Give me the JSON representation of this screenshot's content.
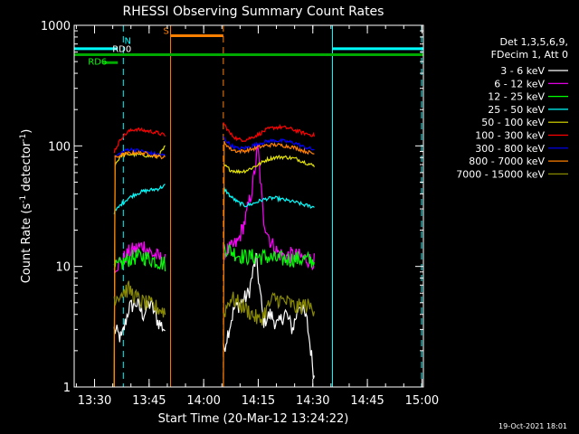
{
  "chart_data": {
    "type": "line",
    "title": "RHESSI Observing Summary Count Rates",
    "xlabel": "Start Time (20-Mar-12 13:24:22)",
    "ylabel": "Count Rate (s⁻¹ detector⁻¹)",
    "ylabel_parts": [
      "Count Rate (s",
      "-1",
      " detector",
      "-1",
      ")"
    ],
    "yscale": "log",
    "ylim": [
      1,
      1000
    ],
    "xlim_minutes": [
      0,
      96
    ],
    "x_ticks": [
      {
        "label": "13:30",
        "t": 5.6
      },
      {
        "label": "13:45",
        "t": 20.6
      },
      {
        "label": "14:00",
        "t": 35.6
      },
      {
        "label": "14:15",
        "t": 50.6
      },
      {
        "label": "14:30",
        "t": 65.6
      },
      {
        "label": "14:45",
        "t": 80.6
      },
      {
        "label": "15:00",
        "t": 95.6
      }
    ],
    "y_ticks": [
      {
        "label": "1",
        "v": 1
      },
      {
        "label": "10",
        "v": 10
      },
      {
        "label": "100",
        "v": 100
      },
      {
        "label": "1000",
        "v": 1000
      }
    ],
    "legend": {
      "placement": "right",
      "header": [
        "Det 1,3,5,6,9,",
        "FDecim 1, Att 0"
      ]
    },
    "segments": [
      [
        11,
        25
      ],
      [
        41,
        66
      ]
    ],
    "series": [
      {
        "name": "3 - 6 keV",
        "color": "#ffffff",
        "seg1": [
          [
            11,
            3
          ],
          [
            13,
            2.5
          ],
          [
            15,
            4.5
          ],
          [
            17,
            5
          ],
          [
            19,
            4
          ],
          [
            21,
            5
          ],
          [
            23,
            3.5
          ],
          [
            25,
            3
          ]
        ],
        "seg2": [
          [
            41,
            2
          ],
          [
            42.5,
            3
          ],
          [
            44,
            4.5
          ],
          [
            46,
            5
          ],
          [
            48,
            6
          ],
          [
            50,
            12
          ],
          [
            52,
            3.5
          ],
          [
            54,
            4
          ],
          [
            56,
            3.2
          ],
          [
            58,
            4.2
          ],
          [
            60,
            3
          ],
          [
            62,
            5
          ],
          [
            64,
            3.5
          ],
          [
            66,
            1.2
          ]
        ]
      },
      {
        "name": "6 - 12 keV",
        "color": "#ff00ff",
        "seg1": [
          [
            11,
            10
          ],
          [
            13,
            11
          ],
          [
            15,
            13
          ],
          [
            17,
            14
          ],
          [
            19,
            15
          ],
          [
            21,
            13
          ],
          [
            23,
            12
          ],
          [
            25,
            11
          ]
        ],
        "seg2": [
          [
            41,
            13
          ],
          [
            43,
            14
          ],
          [
            45,
            16
          ],
          [
            47,
            24
          ],
          [
            49,
            45
          ],
          [
            50.5,
            98
          ],
          [
            52,
            25
          ],
          [
            54,
            16
          ],
          [
            56,
            13
          ],
          [
            58,
            12
          ],
          [
            60,
            12.5
          ],
          [
            62,
            12
          ],
          [
            64,
            11.5
          ],
          [
            66,
            11
          ]
        ]
      },
      {
        "name": "12 - 25 keV",
        "color": "#00ff00",
        "seg1": [
          [
            11,
            9.5
          ],
          [
            13,
            10.5
          ],
          [
            15,
            11.5
          ],
          [
            17,
            12
          ],
          [
            19,
            12
          ],
          [
            21,
            11.5
          ],
          [
            23,
            11
          ],
          [
            25,
            10.5
          ]
        ],
        "seg2": [
          [
            41,
            14.5
          ],
          [
            43,
            13.5
          ],
          [
            45,
            12.5
          ],
          [
            47,
            12
          ],
          [
            49,
            12
          ],
          [
            51,
            12
          ],
          [
            53,
            12
          ],
          [
            55,
            11.5
          ],
          [
            57,
            11.5
          ],
          [
            59,
            11.5
          ],
          [
            61,
            11.5
          ],
          [
            63,
            11.5
          ],
          [
            66,
            11
          ]
        ]
      },
      {
        "name": "25 - 50 keV",
        "color": "#00ffff",
        "seg1": [
          [
            11,
            28
          ],
          [
            13,
            33
          ],
          [
            15,
            37
          ],
          [
            17,
            40
          ],
          [
            19,
            42
          ],
          [
            21,
            43
          ],
          [
            23,
            44
          ],
          [
            25,
            47
          ]
        ],
        "seg2": [
          [
            41,
            45
          ],
          [
            43,
            38
          ],
          [
            45,
            34
          ],
          [
            47,
            32
          ],
          [
            49,
            33
          ],
          [
            51,
            35
          ],
          [
            53,
            36.5
          ],
          [
            55,
            37
          ],
          [
            57,
            36
          ],
          [
            59,
            35
          ],
          [
            61,
            34
          ],
          [
            63,
            32.5
          ],
          [
            66,
            31
          ]
        ]
      },
      {
        "name": "50 - 100 keV",
        "color": "#e5e500",
        "seg1": [
          [
            11,
            0.9
          ],
          [
            11.2,
            70
          ],
          [
            13,
            84
          ],
          [
            15,
            85
          ],
          [
            17,
            85
          ],
          [
            19,
            84
          ],
          [
            21,
            82
          ],
          [
            23,
            82
          ],
          [
            25,
            98
          ]
        ],
        "seg2": [
          [
            41,
            70
          ],
          [
            43,
            63
          ],
          [
            45,
            61
          ],
          [
            47,
            62
          ],
          [
            49,
            66
          ],
          [
            51,
            71
          ],
          [
            53,
            77
          ],
          [
            55,
            80
          ],
          [
            57,
            81
          ],
          [
            59,
            80
          ],
          [
            61,
            78
          ],
          [
            63,
            74
          ],
          [
            66,
            68
          ]
        ]
      },
      {
        "name": "100 - 300 keV",
        "color": "#ff0000",
        "seg1": [
          [
            11,
            90
          ],
          [
            13,
            117
          ],
          [
            15,
            132
          ],
          [
            17,
            138
          ],
          [
            19,
            134
          ],
          [
            21,
            132
          ],
          [
            23,
            128
          ],
          [
            25,
            122
          ]
        ],
        "seg2": [
          [
            41,
            155
          ],
          [
            43,
            125
          ],
          [
            45,
            113
          ],
          [
            47,
            112
          ],
          [
            49,
            118
          ],
          [
            51,
            126
          ],
          [
            53,
            137
          ],
          [
            55,
            142
          ],
          [
            57,
            143
          ],
          [
            59,
            140
          ],
          [
            61,
            134
          ],
          [
            63,
            128
          ],
          [
            66,
            122
          ]
        ]
      },
      {
        "name": "300 - 800 keV",
        "color": "#0000ff",
        "seg1": [
          [
            11,
            80
          ],
          [
            13,
            88
          ],
          [
            15,
            94
          ],
          [
            17,
            92
          ],
          [
            19,
            90
          ],
          [
            21,
            87
          ],
          [
            23,
            85
          ],
          [
            25,
            83
          ]
        ],
        "seg2": [
          [
            41,
            118
          ],
          [
            43,
            101
          ],
          [
            45,
            95
          ],
          [
            47,
            96
          ],
          [
            49,
            100
          ],
          [
            51,
            105
          ],
          [
            53,
            109
          ],
          [
            55,
            111
          ],
          [
            57,
            110
          ],
          [
            59,
            108
          ],
          [
            61,
            105
          ],
          [
            63,
            98
          ],
          [
            66,
            93
          ]
        ]
      },
      {
        "name": "800 - 7000 keV",
        "color": "#ff7f00",
        "seg1": [
          [
            11,
            0.9
          ],
          [
            11.2,
            80
          ],
          [
            13,
            84
          ],
          [
            15,
            87
          ],
          [
            17,
            88
          ],
          [
            19,
            87
          ],
          [
            21,
            85
          ],
          [
            23,
            82
          ],
          [
            25,
            80
          ]
        ],
        "seg2": [
          [
            41,
            0.9
          ],
          [
            41.2,
            108
          ],
          [
            43,
            94
          ],
          [
            45,
            90
          ],
          [
            47,
            91
          ],
          [
            49,
            94
          ],
          [
            51,
            98
          ],
          [
            53,
            101
          ],
          [
            55,
            102
          ],
          [
            57,
            101
          ],
          [
            59,
            99
          ],
          [
            61,
            96
          ],
          [
            63,
            91
          ],
          [
            66,
            86
          ]
        ]
      },
      {
        "name": "7000 - 15000 keV",
        "color": "#8a8a00",
        "seg1": [
          [
            11,
            5.5
          ],
          [
            13,
            6
          ],
          [
            15,
            6.5
          ],
          [
            17,
            5.5
          ],
          [
            19,
            5
          ],
          [
            21,
            4.8
          ],
          [
            23,
            4.5
          ],
          [
            25,
            4.2
          ]
        ],
        "seg2": [
          [
            41,
            4
          ],
          [
            43,
            5.5
          ],
          [
            45,
            5
          ],
          [
            47,
            4.5
          ],
          [
            49,
            4
          ],
          [
            51,
            3.5
          ],
          [
            53,
            4.5
          ],
          [
            55,
            5.5
          ],
          [
            57,
            5.2
          ],
          [
            59,
            5
          ],
          [
            61,
            4.5
          ],
          [
            63,
            4.8
          ],
          [
            66,
            4.5
          ]
        ]
      }
    ],
    "flag_bars": [
      {
        "label": "",
        "color": "#00ffff",
        "from": -1,
        "to": 12,
        "v": 640
      },
      {
        "label": "",
        "color": "#00ffff",
        "from": 71,
        "to": 96,
        "v": 640
      },
      {
        "label": "S",
        "color": "#ff7f00",
        "from": 26.5,
        "to": 41,
        "v": 820
      },
      {
        "label": "RD0",
        "color": "#00aa00",
        "from": -1,
        "to": 96,
        "v": 570
      },
      {
        "label": "RD6",
        "color": "#00aa00",
        "from": 8,
        "to": 12,
        "v": 490
      }
    ],
    "flag_labels": [
      {
        "text": "N",
        "color": "#00ffff",
        "t": 13.8,
        "v": 700
      },
      {
        "text": "RD0",
        "color": "#ffffff",
        "t": 10.5,
        "v": 600
      },
      {
        "text": "RD6",
        "color": "#00ff00",
        "t": 3.8,
        "v": 470
      },
      {
        "text": "S",
        "color": "#ff7f00",
        "t": 24.5,
        "v": 850
      }
    ],
    "vlines": [
      {
        "color": "#00ffff",
        "t": 13.5,
        "style": "dashed"
      },
      {
        "color": "#00ffff",
        "t": 71,
        "style": "solid"
      },
      {
        "color": "#00ffff",
        "t": 95.5,
        "style": "dashed"
      },
      {
        "color": "#ff7f00",
        "t": 26.5,
        "style": "solid"
      },
      {
        "color": "#ff7f00",
        "t": 41,
        "style": "dashed"
      }
    ]
  },
  "footer": {
    "date": "19-Oct-2021 18:01"
  }
}
